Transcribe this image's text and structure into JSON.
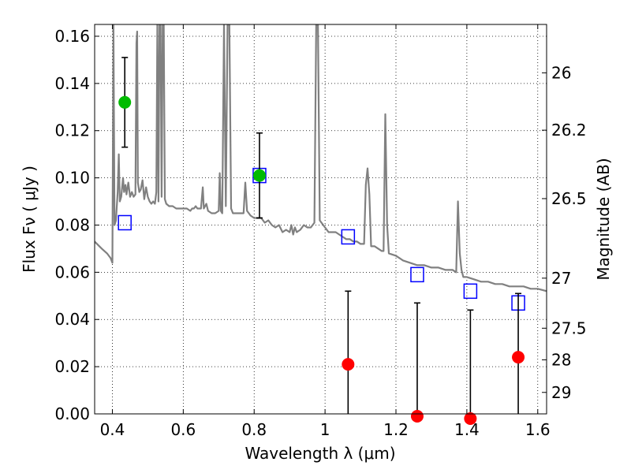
{
  "chart_data": {
    "type": "scatter",
    "xlabel": "Wavelength  λ (μm)",
    "ylabel": "Flux  Fν  ( μJy )",
    "ylabel_right": "Magnitude (AB)",
    "xlim": [
      0.35,
      1.625
    ],
    "ylim": [
      0.0,
      0.165
    ],
    "grid": true,
    "x_ticks": [
      0.4,
      0.6,
      0.8,
      1.0,
      1.2,
      1.4,
      1.6
    ],
    "x_tick_labels": [
      "0.4",
      "0.6",
      "0.8",
      "1",
      "1.2",
      "1.4",
      "1.6"
    ],
    "y_ticks": [
      0.0,
      0.02,
      0.04,
      0.06,
      0.08,
      0.1,
      0.12,
      0.14,
      0.16
    ],
    "y_tick_labels": [
      "0.00",
      "0.02",
      "0.04",
      "0.06",
      "0.08",
      "0.10",
      "0.12",
      "0.14",
      "0.16"
    ],
    "right_ticks": [
      {
        "label": "26",
        "flux": 0.1445
      },
      {
        "label": "26.2",
        "flux": 0.1202
      },
      {
        "label": "26.5",
        "flux": 0.0912
      },
      {
        "label": "27",
        "flux": 0.0575
      },
      {
        "label": "27.5",
        "flux": 0.0363
      },
      {
        "label": "28",
        "flux": 0.0229
      },
      {
        "label": "29",
        "flux": 0.0091
      }
    ],
    "series": [
      {
        "kind": "spectrum",
        "color": "#808080",
        "points": [
          [
            0.35,
            0.073
          ],
          [
            0.37,
            0.07
          ],
          [
            0.385,
            0.068
          ],
          [
            0.395,
            0.066
          ],
          [
            0.4,
            0.064
          ],
          [
            0.403,
            0.165
          ],
          [
            0.406,
            0.08
          ],
          [
            0.41,
            0.082
          ],
          [
            0.415,
            0.094
          ],
          [
            0.418,
            0.11
          ],
          [
            0.421,
            0.09
          ],
          [
            0.425,
            0.092
          ],
          [
            0.43,
            0.1
          ],
          [
            0.433,
            0.094
          ],
          [
            0.437,
            0.097
          ],
          [
            0.44,
            0.093
          ],
          [
            0.445,
            0.098
          ],
          [
            0.45,
            0.092
          ],
          [
            0.455,
            0.094
          ],
          [
            0.46,
            0.092
          ],
          [
            0.465,
            0.093
          ],
          [
            0.468,
            0.157
          ],
          [
            0.47,
            0.162
          ],
          [
            0.472,
            0.098
          ],
          [
            0.476,
            0.094
          ],
          [
            0.48,
            0.095
          ],
          [
            0.485,
            0.099
          ],
          [
            0.49,
            0.091
          ],
          [
            0.495,
            0.096
          ],
          [
            0.5,
            0.092
          ],
          [
            0.505,
            0.09
          ],
          [
            0.51,
            0.089
          ],
          [
            0.515,
            0.09
          ],
          [
            0.52,
            0.089
          ],
          [
            0.524,
            0.094
          ],
          [
            0.527,
            0.165
          ],
          [
            0.53,
            0.09
          ],
          [
            0.533,
            0.165
          ],
          [
            0.536,
            0.165
          ],
          [
            0.539,
            0.092
          ],
          [
            0.542,
            0.165
          ],
          [
            0.545,
            0.165
          ],
          [
            0.548,
            0.091
          ],
          [
            0.552,
            0.089
          ],
          [
            0.56,
            0.088
          ],
          [
            0.57,
            0.088
          ],
          [
            0.58,
            0.087
          ],
          [
            0.59,
            0.087
          ],
          [
            0.6,
            0.087
          ],
          [
            0.61,
            0.087
          ],
          [
            0.62,
            0.086
          ],
          [
            0.625,
            0.087
          ],
          [
            0.63,
            0.087
          ],
          [
            0.635,
            0.088
          ],
          [
            0.64,
            0.087
          ],
          [
            0.65,
            0.087
          ],
          [
            0.655,
            0.096
          ],
          [
            0.658,
            0.087
          ],
          [
            0.665,
            0.089
          ],
          [
            0.67,
            0.086
          ],
          [
            0.68,
            0.085
          ],
          [
            0.69,
            0.085
          ],
          [
            0.7,
            0.086
          ],
          [
            0.703,
            0.102
          ],
          [
            0.706,
            0.086
          ],
          [
            0.71,
            0.085
          ],
          [
            0.715,
            0.165
          ],
          [
            0.72,
            0.088
          ],
          [
            0.725,
            0.165
          ],
          [
            0.73,
            0.165
          ],
          [
            0.735,
            0.087
          ],
          [
            0.74,
            0.085
          ],
          [
            0.75,
            0.085
          ],
          [
            0.76,
            0.085
          ],
          [
            0.77,
            0.085
          ],
          [
            0.775,
            0.098
          ],
          [
            0.78,
            0.086
          ],
          [
            0.79,
            0.084
          ],
          [
            0.8,
            0.083
          ],
          [
            0.81,
            0.083
          ],
          [
            0.82,
            0.083
          ],
          [
            0.83,
            0.081
          ],
          [
            0.84,
            0.082
          ],
          [
            0.85,
            0.08
          ],
          [
            0.86,
            0.079
          ],
          [
            0.87,
            0.08
          ],
          [
            0.88,
            0.077
          ],
          [
            0.89,
            0.078
          ],
          [
            0.9,
            0.077
          ],
          [
            0.905,
            0.08
          ],
          [
            0.91,
            0.076
          ],
          [
            0.915,
            0.079
          ],
          [
            0.92,
            0.077
          ],
          [
            0.93,
            0.078
          ],
          [
            0.94,
            0.08
          ],
          [
            0.95,
            0.079
          ],
          [
            0.96,
            0.079
          ],
          [
            0.97,
            0.081
          ],
          [
            0.975,
            0.165
          ],
          [
            0.98,
            0.165
          ],
          [
            0.985,
            0.082
          ],
          [
            0.99,
            0.081
          ],
          [
            1.0,
            0.079
          ],
          [
            1.01,
            0.077
          ],
          [
            1.02,
            0.077
          ],
          [
            1.03,
            0.077
          ],
          [
            1.04,
            0.076
          ],
          [
            1.05,
            0.075
          ],
          [
            1.06,
            0.074
          ],
          [
            1.07,
            0.074
          ],
          [
            1.08,
            0.073
          ],
          [
            1.09,
            0.073
          ],
          [
            1.1,
            0.072
          ],
          [
            1.11,
            0.072
          ],
          [
            1.115,
            0.097
          ],
          [
            1.12,
            0.104
          ],
          [
            1.125,
            0.093
          ],
          [
            1.13,
            0.071
          ],
          [
            1.14,
            0.071
          ],
          [
            1.15,
            0.07
          ],
          [
            1.16,
            0.069
          ],
          [
            1.165,
            0.069
          ],
          [
            1.17,
            0.127
          ],
          [
            1.175,
            0.08
          ],
          [
            1.18,
            0.068
          ],
          [
            1.2,
            0.067
          ],
          [
            1.22,
            0.065
          ],
          [
            1.24,
            0.064
          ],
          [
            1.26,
            0.063
          ],
          [
            1.28,
            0.063
          ],
          [
            1.3,
            0.062
          ],
          [
            1.32,
            0.062
          ],
          [
            1.34,
            0.061
          ],
          [
            1.36,
            0.061
          ],
          [
            1.37,
            0.06
          ],
          [
            1.375,
            0.09
          ],
          [
            1.38,
            0.068
          ],
          [
            1.385,
            0.061
          ],
          [
            1.39,
            0.058
          ],
          [
            1.4,
            0.058
          ],
          [
            1.42,
            0.057
          ],
          [
            1.44,
            0.056
          ],
          [
            1.46,
            0.056
          ],
          [
            1.48,
            0.055
          ],
          [
            1.5,
            0.055
          ],
          [
            1.52,
            0.054
          ],
          [
            1.54,
            0.054
          ],
          [
            1.56,
            0.054
          ],
          [
            1.58,
            0.053
          ],
          [
            1.6,
            0.053
          ],
          [
            1.625,
            0.052
          ]
        ]
      },
      {
        "kind": "squares",
        "color": "#0000ff",
        "x": [
          0.435,
          0.815,
          1.065,
          1.26,
          1.41,
          1.545
        ],
        "y": [
          0.081,
          0.101,
          0.075,
          0.059,
          0.052,
          0.047
        ]
      },
      {
        "kind": "detections",
        "color": "#00bb00",
        "x": [
          0.435,
          0.815
        ],
        "y": [
          0.132,
          0.101
        ],
        "yerr_low": [
          0.113,
          0.083
        ],
        "yerr_high": [
          0.151,
          0.119
        ]
      },
      {
        "kind": "upper-limits",
        "color": "#ff0000",
        "x": [
          1.065,
          1.26,
          1.41,
          1.545
        ],
        "y": [
          0.021,
          -0.001,
          -0.002,
          0.024
        ],
        "yerr_low": [
          0.0,
          0.0,
          0.0,
          0.0
        ],
        "yerr_high": [
          0.052,
          0.047,
          0.044,
          0.051
        ]
      }
    ]
  }
}
